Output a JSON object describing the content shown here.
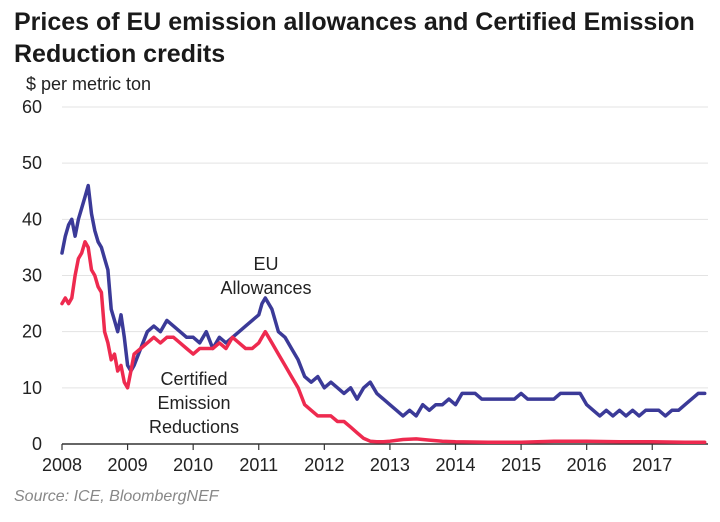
{
  "title": "Prices of EU emission allowances and Certified Emission Reduction credits",
  "source": "Source: ICE, BloombergNEF",
  "colors": {
    "eua": "#3b3a98",
    "cer": "#ee2a4f",
    "grid": "#e3e3e3",
    "axis": "#333333"
  },
  "chart_data": {
    "type": "line",
    "title": "Prices of EU emission allowances and Certified Emission Reduction credits",
    "xlabel": "",
    "ylabel": "$ per metric ton",
    "xlim": [
      2008.0,
      2017.85
    ],
    "ylim": [
      0,
      60
    ],
    "yticks": [
      "0",
      "10",
      "20",
      "30",
      "40",
      "50",
      "60"
    ],
    "xticks": [
      "2008",
      "2009",
      "2010",
      "2011",
      "2012",
      "2013",
      "2014",
      "2015",
      "2016",
      "2017"
    ],
    "grid": "horizontal",
    "annotations": [
      {
        "lines": [
          "EU",
          "Allowances"
        ],
        "series": "EU Allowances"
      },
      {
        "lines": [
          "Certified",
          "Emission",
          "Reductions"
        ],
        "series": "Certified Emission Reductions"
      }
    ],
    "series": [
      {
        "name": "EU Allowances",
        "x": [
          2008.0,
          2008.05,
          2008.1,
          2008.15,
          2008.2,
          2008.25,
          2008.3,
          2008.35,
          2008.4,
          2008.45,
          2008.5,
          2008.55,
          2008.6,
          2008.65,
          2008.7,
          2008.75,
          2008.8,
          2008.85,
          2008.9,
          2008.95,
          2009.0,
          2009.05,
          2009.1,
          2009.2,
          2009.3,
          2009.4,
          2009.5,
          2009.6,
          2009.7,
          2009.8,
          2009.9,
          2010.0,
          2010.1,
          2010.2,
          2010.3,
          2010.4,
          2010.5,
          2010.6,
          2010.7,
          2010.8,
          2010.9,
          2011.0,
          2011.05,
          2011.1,
          2011.2,
          2011.3,
          2011.4,
          2011.5,
          2011.6,
          2011.7,
          2011.8,
          2011.9,
          2012.0,
          2012.1,
          2012.2,
          2012.3,
          2012.4,
          2012.5,
          2012.6,
          2012.7,
          2012.8,
          2012.9,
          2013.0,
          2013.1,
          2013.2,
          2013.3,
          2013.4,
          2013.5,
          2013.6,
          2013.7,
          2013.8,
          2013.9,
          2014.0,
          2014.1,
          2014.2,
          2014.3,
          2014.4,
          2014.5,
          2014.6,
          2014.7,
          2014.8,
          2014.9,
          2015.0,
          2015.1,
          2015.2,
          2015.3,
          2015.4,
          2015.5,
          2015.6,
          2015.7,
          2015.8,
          2015.9,
          2016.0,
          2016.1,
          2016.2,
          2016.3,
          2016.4,
          2016.5,
          2016.6,
          2016.7,
          2016.8,
          2016.9,
          2017.0,
          2017.1,
          2017.2,
          2017.3,
          2017.4,
          2017.5,
          2017.6,
          2017.7,
          2017.8
        ],
        "y": [
          34,
          37,
          39,
          40,
          37,
          40,
          42,
          44,
          46,
          41,
          38,
          36,
          35,
          33,
          31,
          24,
          22,
          20,
          23,
          19,
          14,
          13,
          14,
          17,
          20,
          21,
          20,
          22,
          21,
          20,
          19,
          19,
          18,
          20,
          17,
          19,
          18,
          19,
          20,
          21,
          22,
          23,
          25,
          26,
          24,
          20,
          19,
          17,
          15,
          12,
          11,
          12,
          10,
          11,
          10,
          9,
          10,
          8,
          10,
          11,
          9,
          8,
          7,
          6,
          5,
          6,
          5,
          7,
          6,
          7,
          7,
          8,
          7,
          9,
          9,
          9,
          8,
          8,
          8,
          8,
          8,
          8,
          9,
          8,
          8,
          8,
          8,
          8,
          9,
          9,
          9,
          9,
          7,
          6,
          5,
          6,
          5,
          6,
          5,
          6,
          5,
          6,
          6,
          6,
          5,
          6,
          6,
          7,
          8,
          9,
          9
        ]
      },
      {
        "name": "Certified Emission Reductions",
        "x": [
          2008.0,
          2008.05,
          2008.1,
          2008.15,
          2008.2,
          2008.25,
          2008.3,
          2008.35,
          2008.4,
          2008.45,
          2008.5,
          2008.55,
          2008.6,
          2008.65,
          2008.7,
          2008.75,
          2008.8,
          2008.85,
          2008.9,
          2008.95,
          2009.0,
          2009.05,
          2009.1,
          2009.2,
          2009.3,
          2009.4,
          2009.5,
          2009.6,
          2009.7,
          2009.8,
          2009.9,
          2010.0,
          2010.1,
          2010.2,
          2010.3,
          2010.4,
          2010.5,
          2010.6,
          2010.7,
          2010.8,
          2010.9,
          2011.0,
          2011.05,
          2011.1,
          2011.2,
          2011.3,
          2011.4,
          2011.5,
          2011.6,
          2011.7,
          2011.8,
          2011.9,
          2012.0,
          2012.1,
          2012.2,
          2012.3,
          2012.4,
          2012.5,
          2012.6,
          2012.7,
          2012.8,
          2012.9,
          2013.0,
          2013.2,
          2013.4,
          2013.6,
          2013.8,
          2014.0,
          2014.5,
          2015.0,
          2015.5,
          2016.0,
          2016.5,
          2017.0,
          2017.5,
          2017.8
        ],
        "y": [
          25,
          26,
          25,
          26,
          30,
          33,
          34,
          36,
          35,
          31,
          30,
          28,
          27,
          20,
          18,
          15,
          16,
          13,
          14,
          11,
          10,
          13,
          16,
          17,
          18,
          19,
          18,
          19,
          19,
          18,
          17,
          16,
          17,
          17,
          17,
          18,
          17,
          19,
          18,
          17,
          17,
          18,
          19,
          20,
          18,
          16,
          14,
          12,
          10,
          7,
          6,
          5,
          5,
          5,
          4,
          4,
          3,
          2,
          1,
          0.5,
          0.4,
          0.4,
          0.5,
          0.8,
          0.9,
          0.7,
          0.5,
          0.4,
          0.3,
          0.3,
          0.5,
          0.5,
          0.4,
          0.4,
          0.3,
          0.3
        ]
      }
    ]
  }
}
